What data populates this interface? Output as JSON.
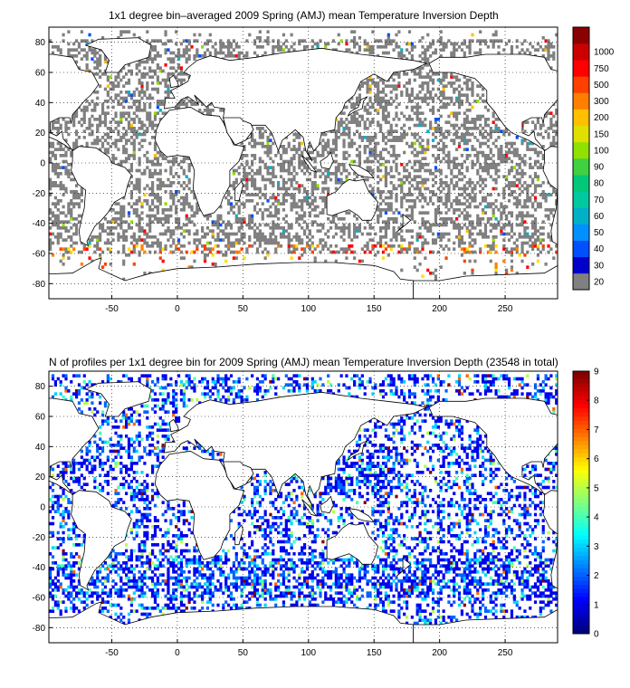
{
  "chart_data": [
    {
      "type": "heatmap",
      "title": "1x1 degree bin–averaged 2009 Spring (AMJ) mean Temperature Inversion Depth",
      "xlabel": "",
      "ylabel": "",
      "xlim": [
        -98,
        290
      ],
      "ylim": [
        -90,
        90
      ],
      "x_ticks": [
        -50,
        0,
        50,
        100,
        150,
        200,
        250
      ],
      "y_ticks": [
        -80,
        -60,
        -40,
        -20,
        0,
        20,
        40,
        60,
        80
      ],
      "grid": true,
      "colorbar": {
        "labels": [
          "20",
          "30",
          "40",
          "50",
          "60",
          "70",
          "80",
          "90",
          "100",
          "150",
          "200",
          "300",
          "500",
          "750",
          "1000"
        ],
        "colors": [
          "#808080",
          "#0000cc",
          "#0050ff",
          "#0090ff",
          "#00b0c8",
          "#00c8a0",
          "#00c878",
          "#40d040",
          "#90e000",
          "#e0e000",
          "#ffc000",
          "#ff8000",
          "#ff4000",
          "#ff0000",
          "#cc0000",
          "#8b0000"
        ]
      }
    },
    {
      "type": "heatmap",
      "title": "N of profiles per 1x1 degree bin for 2009 Spring (AMJ) mean Temperature Inversion Depth  (23548 in total)",
      "xlabel": "",
      "ylabel": "",
      "xlim": [
        -98,
        290
      ],
      "ylim": [
        -90,
        90
      ],
      "x_ticks": [
        -50,
        0,
        50,
        100,
        150,
        200,
        250
      ],
      "y_ticks": [
        -80,
        -60,
        -40,
        -20,
        0,
        20,
        40,
        60,
        80
      ],
      "grid": true,
      "colorbar": {
        "labels": [
          "0",
          "1",
          "2",
          "3",
          "4",
          "5",
          "6",
          "7",
          "8",
          "9"
        ],
        "range": [
          0,
          9
        ],
        "colormap": "jet"
      }
    }
  ]
}
